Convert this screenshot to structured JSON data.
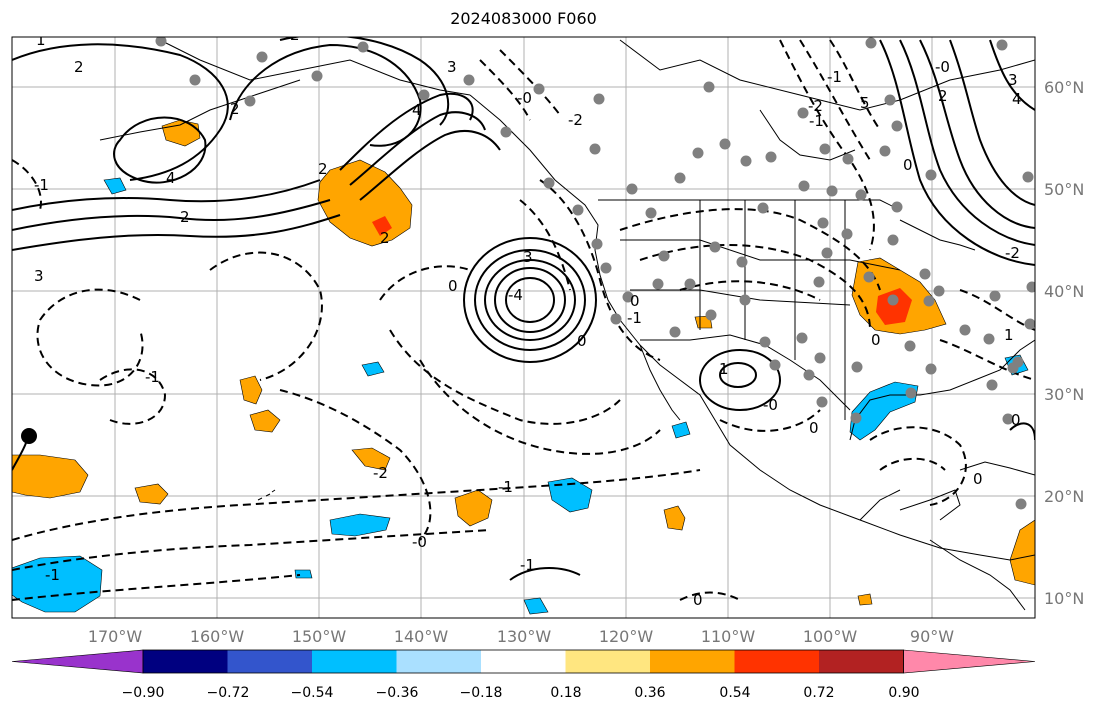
{
  "title": "2024083000 F060",
  "map": {
    "latitude_labels": [
      "60°N",
      "50°N",
      "40°N",
      "30°N",
      "20°N",
      "10°N"
    ],
    "longitude_labels": [
      "170°W",
      "160°W",
      "150°W",
      "140°W",
      "130°W",
      "120°W",
      "110°W",
      "100°W",
      "90°W"
    ],
    "contour_labels": [
      "1",
      "2",
      "-1",
      "2",
      "3",
      "4",
      "4",
      "2",
      "2",
      "2",
      "3",
      "2",
      "-2",
      "0",
      "0",
      "3",
      "-4",
      "0",
      "-1",
      "-1",
      "-2",
      "-1",
      "-0",
      "-1",
      "0",
      "0",
      "-0",
      "1",
      "0",
      "0",
      "-0",
      "2",
      "3",
      "4",
      "5",
      "-2",
      "-1",
      "-1",
      "0",
      "-2",
      "1",
      "-1",
      "-0",
      "0",
      "0"
    ],
    "colors": {
      "land_outline": "#000000",
      "grid": "#b0b0b0",
      "station_dot": "#808080",
      "positive_fill": "#ffa500",
      "positive_strong_fill": "#ff3300",
      "negative_fill": "#00bfff"
    }
  },
  "colorbar": {
    "tick_labels": [
      "−0.90",
      "−0.72",
      "−0.54",
      "−0.36",
      "−0.18",
      "0.18",
      "0.36",
      "0.54",
      "0.72",
      "0.90"
    ],
    "colors": [
      "#9933cc",
      "#000080",
      "#3355cc",
      "#00bfff",
      "#aae0ff",
      "#ffffff",
      "#ffe680",
      "#ffa500",
      "#ff3300",
      "#b22222",
      "#ff88aa"
    ]
  }
}
